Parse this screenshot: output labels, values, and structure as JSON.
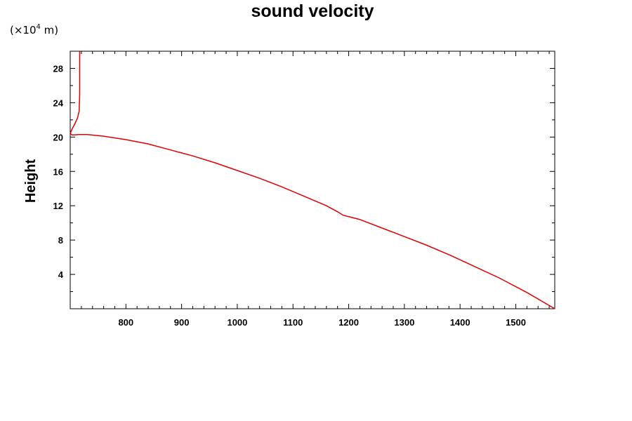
{
  "chart_data": {
    "type": "line",
    "title": "sound velocity",
    "ylabel": "Height",
    "xlabel": "",
    "y_unit": {
      "prefix": "(×10",
      "exponent": "4",
      "suffix": " m)"
    },
    "xlim": [
      700,
      1570
    ],
    "ylim": [
      0,
      30
    ],
    "xticks": [
      800,
      900,
      1000,
      1100,
      1200,
      1300,
      1400,
      1500
    ],
    "yticks": [
      4,
      8,
      12,
      16,
      20,
      24,
      28
    ],
    "line_color": "#e00000",
    "series": [
      {
        "x": [
          1570,
          1520,
          1470,
          1420,
          1380,
          1340,
          1300,
          1260,
          1220,
          1190,
          1180,
          1160,
          1120,
          1080,
          1040,
          1000,
          960,
          920,
          880,
          840,
          800,
          760,
          730,
          715,
          708,
          703,
          700,
          703,
          708,
          713,
          716,
          717,
          717,
          717
        ],
        "y": [
          0,
          1.9,
          3.6,
          5.1,
          6.3,
          7.4,
          8.4,
          9.4,
          10.4,
          10.9,
          11.3,
          12.0,
          13.1,
          14.2,
          15.2,
          16.1,
          17.0,
          17.8,
          18.5,
          19.2,
          19.7,
          20.1,
          20.3,
          20.3,
          20.25,
          20.25,
          20.4,
          20.9,
          21.5,
          22.2,
          23.0,
          25.0,
          27.0,
          30.0
        ]
      }
    ]
  }
}
